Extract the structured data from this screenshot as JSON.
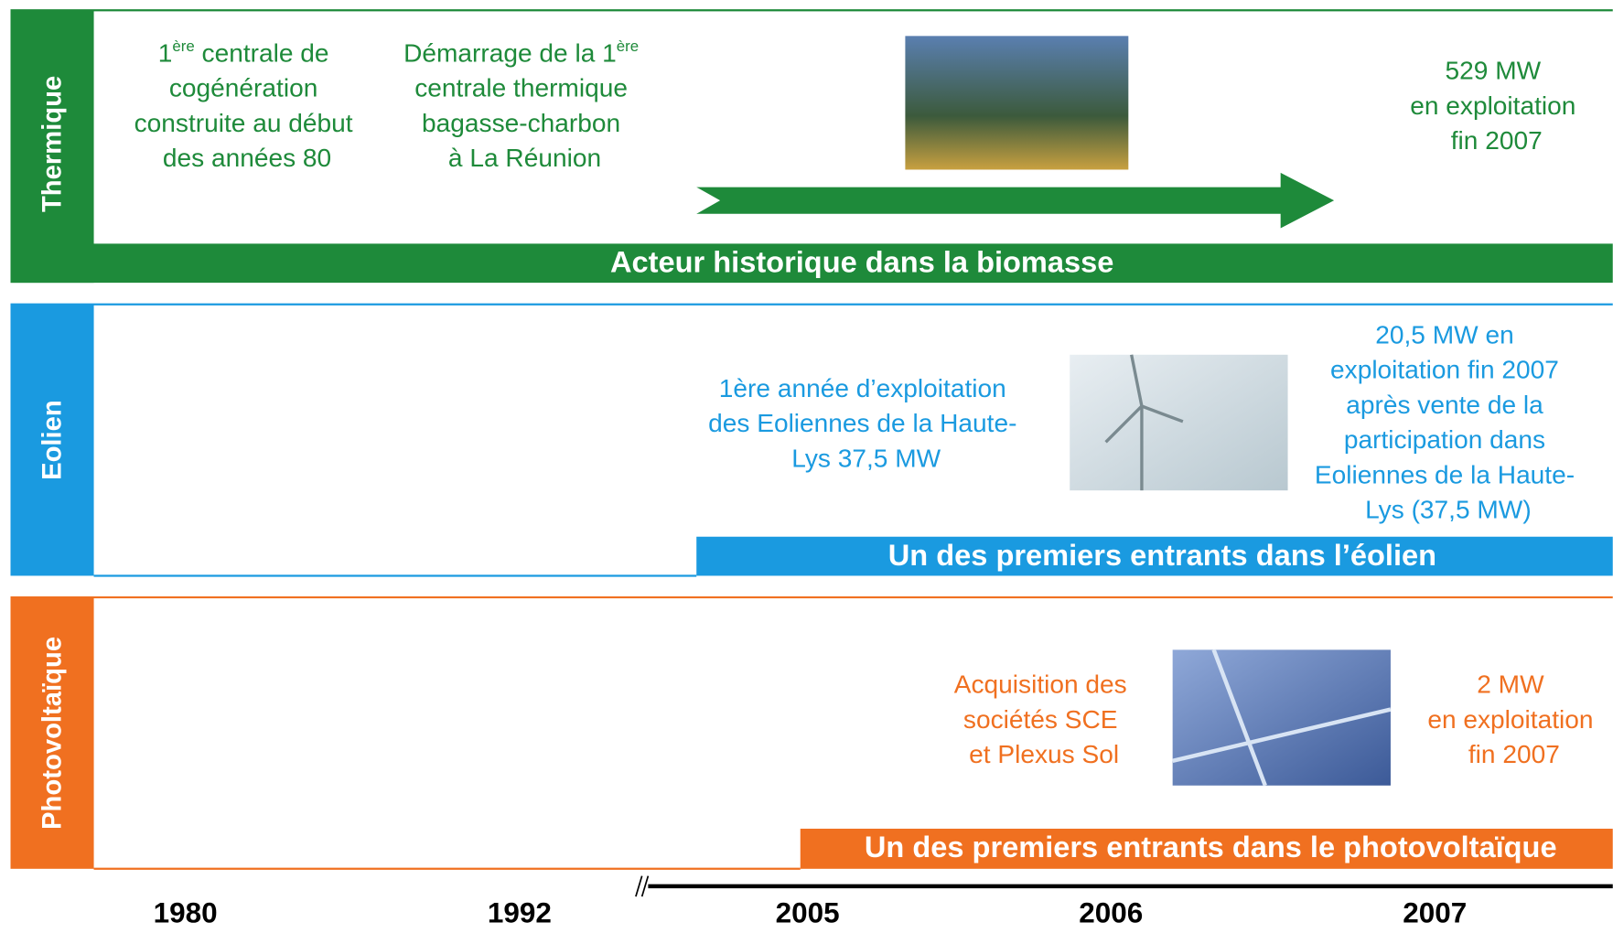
{
  "rows": [
    {
      "label": "Thermique",
      "banner": "Acteur historique dans la biomasse",
      "notes": [
        {
          "lines": [
            [
              "1",
              "ère",
              " centrale de"
            ],
            [
              "cogénération"
            ],
            [
              "construite au début"
            ],
            [
              "des années 80"
            ]
          ]
        },
        {
          "lines": [
            [
              "Démarrage de la 1",
              "ère"
            ],
            [
              "centrale thermique"
            ],
            [
              "bagasse-charbon"
            ],
            [
              "à La Réunion"
            ]
          ]
        },
        {
          "lines": [
            [
              "529 MW"
            ],
            [
              "en exploitation"
            ],
            [
              "fin 2007"
            ]
          ]
        }
      ]
    },
    {
      "label": "Eolien",
      "banner": "Un des premiers entrants dans l’éolien",
      "notes": [
        {
          "lines": [
            [
              "1ère année d’exploitation"
            ],
            [
              "des Eoliennes de la Haute-"
            ],
            [
              "Lys 37,5 MW"
            ]
          ]
        },
        {
          "lines": [
            [
              "20,5 MW en"
            ],
            [
              "exploitation fin 2007"
            ],
            [
              "après vente de la"
            ],
            [
              "participation dans"
            ],
            [
              "Eoliennes de la Haute-"
            ],
            [
              "Lys (37,5 MW)"
            ]
          ]
        }
      ]
    },
    {
      "label": "Photovoltaïque",
      "banner": "Un des premiers entrants dans le photovoltaïque",
      "notes": [
        {
          "lines": [
            [
              "Acquisition des"
            ],
            [
              "sociétés SCE"
            ],
            [
              "et Plexus Sol"
            ]
          ]
        },
        {
          "lines": [
            [
              "2 MW"
            ],
            [
              "en exploitation"
            ],
            [
              "fin 2007"
            ]
          ]
        }
      ]
    }
  ],
  "timeline": {
    "years": [
      "1980",
      "1992",
      "2005",
      "2006",
      "2007"
    ]
  }
}
